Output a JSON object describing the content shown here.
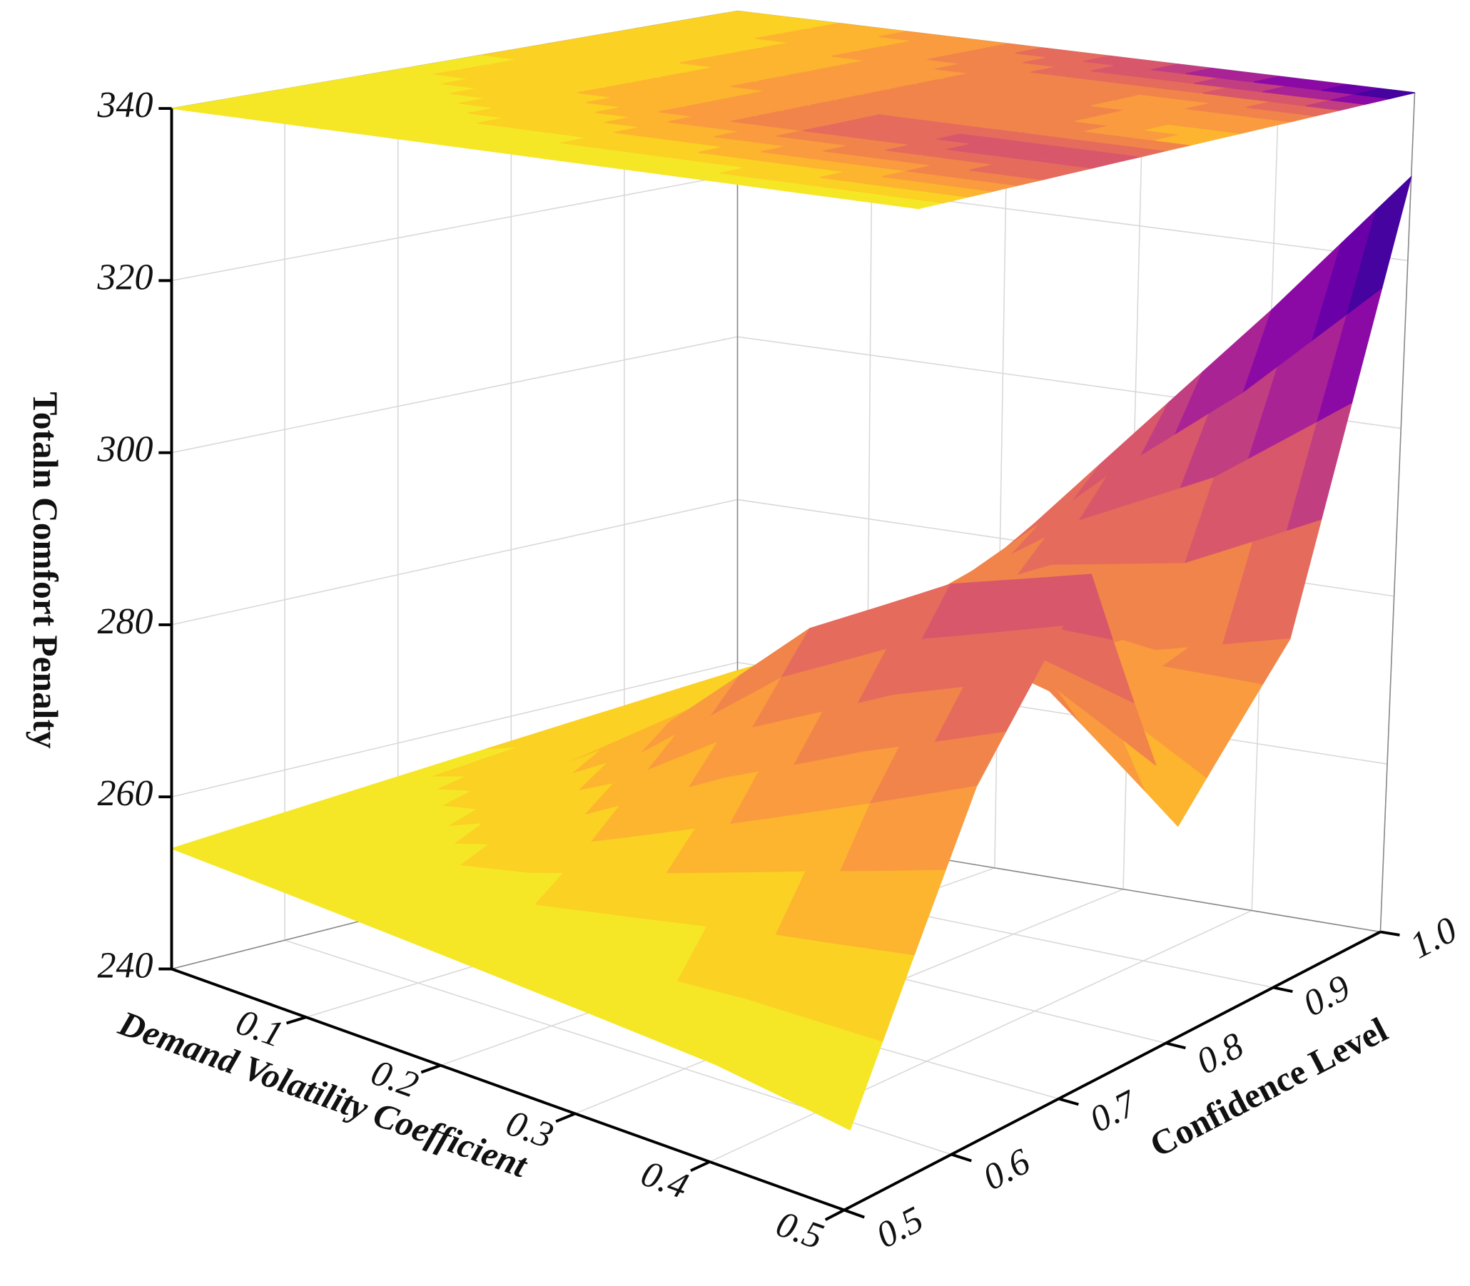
{
  "chart_data": {
    "type": "surface3d",
    "x_label": "Demand Volatility Coefficient",
    "y_label": "Confidence Level",
    "z_label": "Totaln Comfort Penalty",
    "x": [
      0,
      0.1,
      0.2,
      0.3,
      0.4,
      0.5
    ],
    "y": [
      0.5,
      0.6,
      0.7,
      0.8,
      0.9,
      1.0
    ],
    "z": [
      [
        254,
        253,
        252,
        251,
        250,
        248
      ],
      [
        255,
        256,
        260,
        266,
        272,
        278
      ],
      [
        256,
        260,
        270,
        284,
        292,
        296
      ],
      [
        257,
        262,
        272,
        280,
        276,
        264
      ],
      [
        258,
        264,
        274,
        278,
        276,
        280
      ],
      [
        259,
        266,
        278,
        295,
        312,
        330
      ]
    ],
    "xlim": [
      0,
      0.5
    ],
    "ylim": [
      0.5,
      1
    ],
    "zlim": [
      240,
      340
    ],
    "xticks": [
      0.1,
      0.2,
      0.3,
      0.4,
      0.5
    ],
    "yticks": [
      0.5,
      0.6,
      0.7,
      0.8,
      0.9,
      {
        "value": 1,
        "label": "1.0"
      }
    ],
    "zticks": [
      240,
      260,
      280,
      300,
      320,
      340
    ],
    "colormap": [
      "#f0f921",
      "#f6e726",
      "#fbd124",
      "#fdb42f",
      "#f99b3e",
      "#f1844b",
      "#e56b5d",
      "#d8576b",
      "#c13f80",
      "#a92395",
      "#8b0aa5",
      "#6a00a8",
      "#46039f",
      "#0d0887"
    ],
    "grid": true,
    "contour_projection": true
  }
}
